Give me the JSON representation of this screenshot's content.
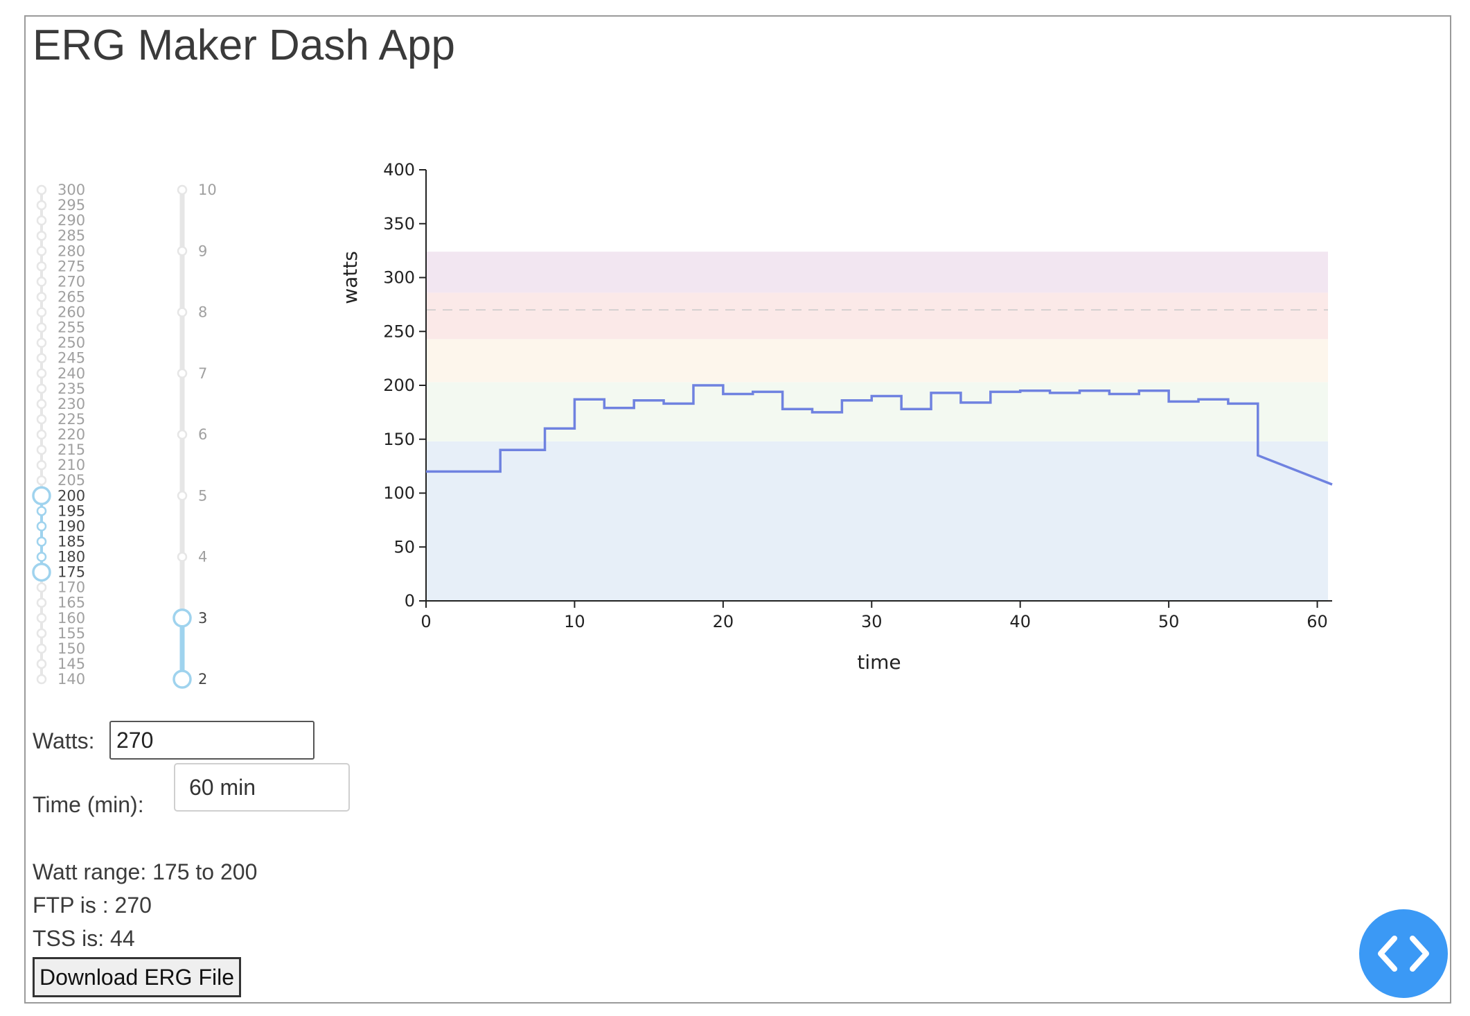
{
  "app": {
    "title": "ERG Maker Dash App"
  },
  "watt_slider": {
    "min": 140,
    "max": 300,
    "step": 5,
    "selected_range": [
      175,
      200
    ],
    "labels": [
      "300",
      "295",
      "290",
      "285",
      "280",
      "275",
      "270",
      "265",
      "260",
      "255",
      "250",
      "245",
      "240",
      "235",
      "230",
      "225",
      "220",
      "215",
      "210",
      "205",
      "200",
      "195",
      "190",
      "185",
      "180",
      "175",
      "170",
      "165",
      "160",
      "155",
      "150",
      "145",
      "140"
    ]
  },
  "time_slider": {
    "min": 2,
    "max": 10,
    "step": 1,
    "selected_range": [
      2,
      3
    ],
    "labels": [
      "10",
      "9",
      "8",
      "7",
      "6",
      "5",
      "4",
      "3",
      "2"
    ]
  },
  "form": {
    "watts_label": "Watts:",
    "watts_value": "270",
    "time_label": "Time (min):",
    "time_value": "60 min"
  },
  "info": {
    "watt_range": "Watt range: 175 to 200",
    "ftp": "FTP is : 270",
    "tss": "TSS is: 44"
  },
  "download_label": "Download ERG File",
  "colors": {
    "line": "#6f82e0",
    "slider_active": "#9fd3ee",
    "slider_inactive": "#e6e6e6",
    "dev_button": "#3b99f5"
  },
  "chart_data": {
    "type": "line",
    "xlabel": "time",
    "ylabel": "watts",
    "xlim": [
      0,
      61
    ],
    "ylim": [
      0,
      400
    ],
    "xticks": [
      0,
      10,
      20,
      30,
      40,
      50,
      60
    ],
    "yticks": [
      0,
      50,
      100,
      150,
      200,
      250,
      300,
      350,
      400
    ],
    "ftp_line": 270,
    "zones": [
      {
        "from": 0,
        "to": 148,
        "color": "#e7eff8"
      },
      {
        "from": 148,
        "to": 203,
        "color": "#f3f9f1"
      },
      {
        "from": 203,
        "to": 243,
        "color": "#fdf6ec"
      },
      {
        "from": 243,
        "to": 286,
        "color": "#fbe9e8"
      },
      {
        "from": 286,
        "to": 324,
        "color": "#f2e6f1"
      }
    ],
    "series": [
      {
        "values_x": [
          0,
          5,
          5,
          8,
          8,
          10,
          10,
          12,
          12,
          14,
          14,
          16,
          16,
          18,
          18,
          20,
          20,
          22,
          22,
          24,
          24,
          26,
          26,
          28,
          28,
          30,
          30,
          32,
          32,
          34,
          34,
          36,
          36,
          38,
          38,
          40,
          40,
          42,
          42,
          44,
          44,
          46,
          46,
          48,
          48,
          50,
          50,
          52,
          52,
          54,
          54,
          56,
          56,
          61
        ],
        "values_y": [
          120,
          120,
          140,
          140,
          160,
          160,
          187,
          187,
          179,
          179,
          186,
          186,
          183,
          183,
          200,
          200,
          192,
          192,
          194,
          194,
          178,
          178,
          175,
          175,
          186,
          186,
          190,
          190,
          178,
          178,
          193,
          193,
          184,
          184,
          194,
          194,
          195,
          195,
          193,
          193,
          195,
          195,
          192,
          192,
          195,
          195,
          185,
          185,
          187,
          187,
          183,
          183,
          135,
          108
        ]
      }
    ],
    "grid": false
  }
}
